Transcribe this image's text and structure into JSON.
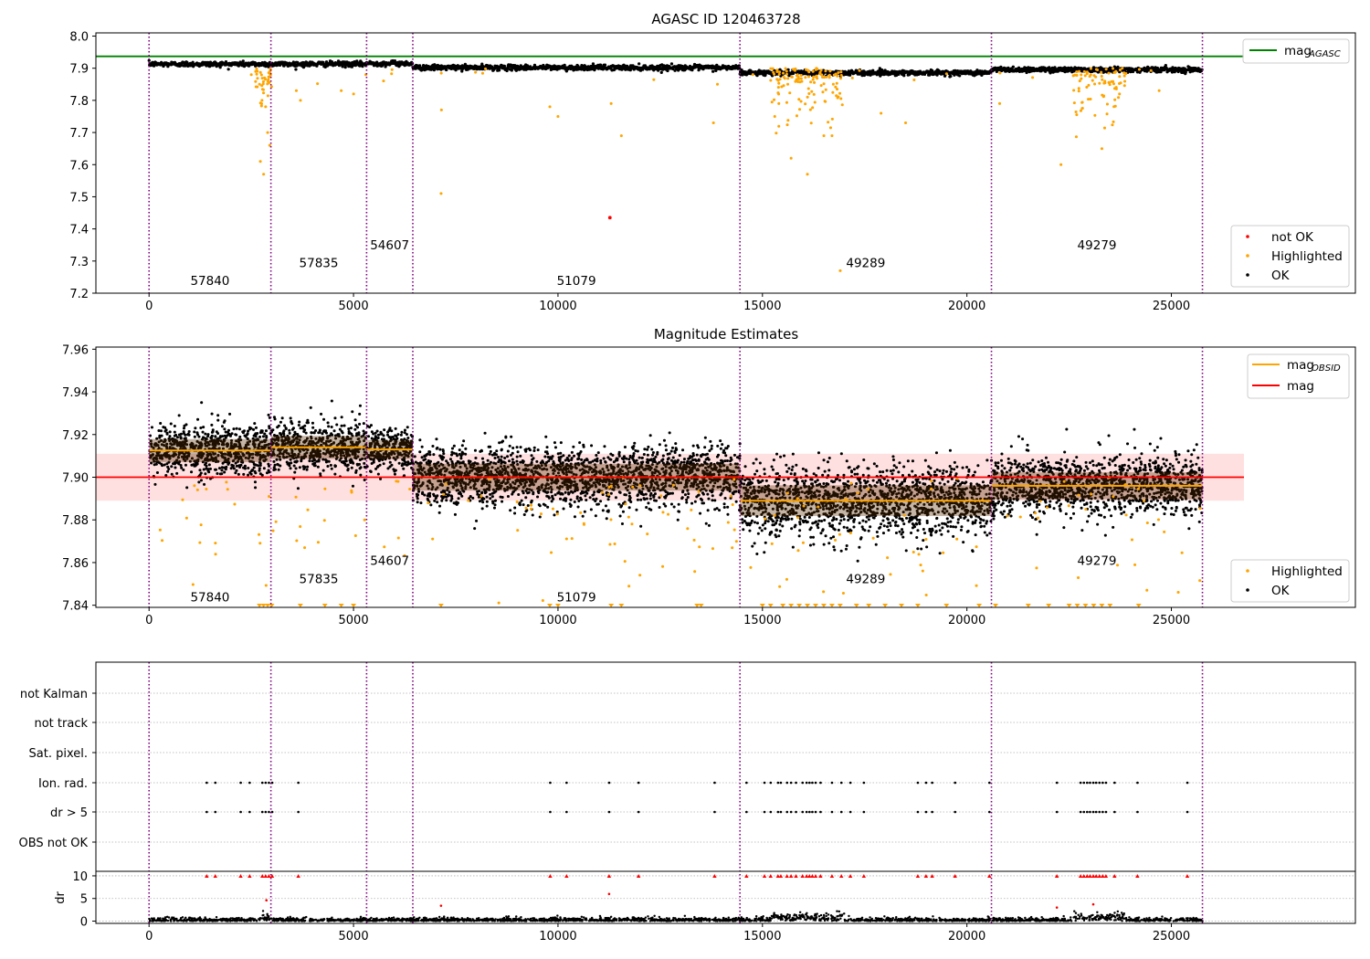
{
  "chart_data": [
    {
      "type": "scatter",
      "title": "AGASC ID 120463728",
      "xlim": [
        -1300,
        29500
      ],
      "ylim": [
        7.2,
        8.01
      ],
      "xticks": [
        0,
        5000,
        10000,
        15000,
        20000,
        25000
      ],
      "yticks": [
        7.2,
        7.3,
        7.4,
        7.5,
        7.6,
        7.7,
        7.8,
        7.9,
        8.0
      ],
      "ytick_labels": [
        "7.2",
        "7.3",
        "7.4",
        "7.5",
        "7.6",
        "7.7",
        "7.8",
        "7.9",
        "8.0"
      ],
      "mag_agasc": 7.937,
      "obs_boundaries": [
        0,
        2980,
        5320,
        6450,
        14450,
        20600,
        25760
      ],
      "obs_labels": [
        {
          "text": "57840",
          "x": 1490,
          "y": 7.24
        },
        {
          "text": "57835",
          "x": 4150,
          "y": 7.295
        },
        {
          "text": "54607",
          "x": 5885,
          "y": 7.35
        },
        {
          "text": "51079",
          "x": 10450,
          "y": 7.24
        },
        {
          "text": "49289",
          "x": 17525,
          "y": 7.295
        },
        {
          "text": "49279",
          "x": 23180,
          "y": 7.35
        }
      ],
      "segments_mean": [
        7.913,
        7.913,
        7.915,
        7.902,
        7.886,
        7.896
      ],
      "series": [
        {
          "name": "mag$_{AGASC}$",
          "color": "#008000",
          "kind": "line"
        },
        {
          "name": "not OK",
          "color": "#ff0000",
          "kind": "point",
          "points": [
            [
              11270,
              7.435
            ]
          ]
        },
        {
          "name": "Highlighted",
          "color": "#ffa500",
          "kind": "point"
        },
        {
          "name": "OK",
          "color": "#000000",
          "kind": "point"
        }
      ],
      "legend_top": "mag$_{AGASC}$",
      "legend_bottom": [
        "not OK",
        "Highlighted",
        "OK"
      ],
      "legend_top_label": "mag",
      "legend_top_sub": "AGASC",
      "legend_top_loc": "upper right",
      "legend_bottom_loc": "lower right"
    },
    {
      "type": "scatter",
      "title": "Magnitude Estimates",
      "xlim": [
        -1300,
        29500
      ],
      "ylim": [
        7.839,
        7.961
      ],
      "xticks": [
        0,
        5000,
        10000,
        15000,
        20000,
        25000
      ],
      "yticks": [
        7.84,
        7.86,
        7.88,
        7.9,
        7.92,
        7.94,
        7.96
      ],
      "ytick_labels": [
        "7.84",
        "7.86",
        "7.88",
        "7.90",
        "7.92",
        "7.94",
        "7.96"
      ],
      "mag": 7.9,
      "mag_band": [
        7.889,
        7.911
      ],
      "obs_mag": [
        7.9125,
        7.914,
        7.913,
        7.9,
        7.889,
        7.896
      ],
      "obs_spread": [
        0.006,
        0.006,
        0.005,
        0.007,
        0.008,
        0.007
      ],
      "obs_labels": [
        {
          "text": "57840",
          "x": 1490,
          "y": 7.844
        },
        {
          "text": "57835",
          "x": 4150,
          "y": 7.8525
        },
        {
          "text": "54607",
          "x": 5885,
          "y": 7.861
        },
        {
          "text": "51079",
          "x": 10450,
          "y": 7.844
        },
        {
          "text": "49289",
          "x": 17525,
          "y": 7.8525
        },
        {
          "text": "49279",
          "x": 23180,
          "y": 7.861
        }
      ],
      "legend_top": [
        "mag$_{OBSID}$",
        "mag"
      ],
      "legend_bottom": [
        "Highlighted",
        "OK"
      ],
      "legend_obsid_label": "mag",
      "legend_obsid_sub": "OBSID",
      "legend_mag_label": "mag",
      "legend_top_loc": "upper right",
      "legend_bottom_loc": "lower right"
    },
    {
      "type": "scatter",
      "xlim": [
        -1300,
        29500
      ],
      "yticks_labels": [
        "not Kalman",
        "not track",
        "Sat. pixel.",
        "Ion. rad.",
        "dr > 5",
        "OBS not OK"
      ],
      "flag_times": [
        1410,
        1620,
        2240,
        2460,
        2770,
        2850,
        2930,
        3010,
        3650,
        9810,
        10210,
        11250,
        11970,
        13830,
        14610,
        15050,
        15200,
        15380,
        15450,
        15600,
        15700,
        15820,
        15980,
        16080,
        16150,
        16220,
        16300,
        16420,
        16700,
        16930,
        17150,
        17480,
        18800,
        19000,
        19150,
        19710,
        20550,
        22200,
        22780,
        22860,
        22940,
        23010,
        23090,
        23160,
        23240,
        23320,
        23400,
        23610,
        24170,
        25390
      ],
      "grid": true
    },
    {
      "type": "scatter",
      "xlim": [
        -1300,
        29500
      ],
      "ylim": [
        -0.5,
        11
      ],
      "xticks": [
        0,
        5000,
        10000,
        15000,
        20000,
        25000
      ],
      "yticks": [
        0,
        5,
        10
      ],
      "ylabel": "dr",
      "red_points": [
        [
          7140,
          3.4
        ],
        [
          11250,
          6.0
        ],
        [
          2870,
          4.6
        ],
        [
          23090,
          3.7
        ],
        [
          22200,
          3.0
        ]
      ],
      "grid": true
    }
  ]
}
